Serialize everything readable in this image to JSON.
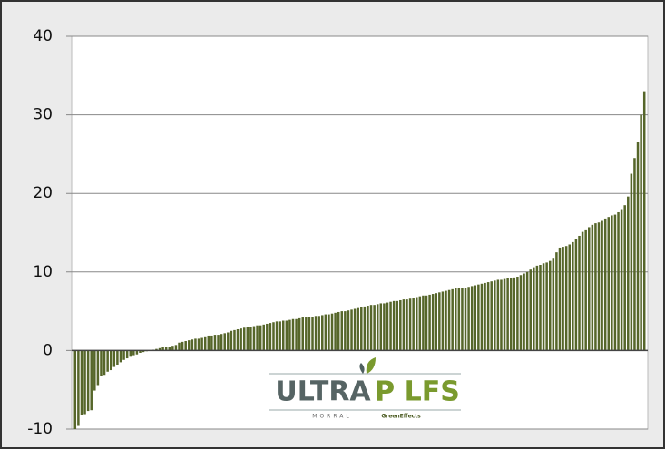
{
  "chart_data": {
    "type": "bar",
    "color": "#56662a",
    "values": [
      -10,
      -9.6,
      -8.2,
      -8.1,
      -7.7,
      -7.6,
      -5.1,
      -4.4,
      -3.2,
      -3.1,
      -2.7,
      -2.5,
      -2.1,
      -1.8,
      -1.5,
      -1.2,
      -1.0,
      -0.8,
      -0.6,
      -0.5,
      -0.3,
      -0.2,
      -0.1,
      0.0,
      0.1,
      0.2,
      0.3,
      0.4,
      0.5,
      0.5,
      0.6,
      0.7,
      1.0,
      1.1,
      1.2,
      1.3,
      1.4,
      1.5,
      1.5,
      1.6,
      1.8,
      1.9,
      1.9,
      2.0,
      2.0,
      2.1,
      2.2,
      2.3,
      2.5,
      2.6,
      2.7,
      2.8,
      2.9,
      3.0,
      3.0,
      3.1,
      3.2,
      3.2,
      3.3,
      3.4,
      3.5,
      3.6,
      3.7,
      3.7,
      3.8,
      3.8,
      3.9,
      4.0,
      4.0,
      4.1,
      4.2,
      4.2,
      4.3,
      4.3,
      4.4,
      4.4,
      4.5,
      4.6,
      4.6,
      4.7,
      4.8,
      4.9,
      5.0,
      5.0,
      5.1,
      5.2,
      5.3,
      5.4,
      5.5,
      5.6,
      5.7,
      5.8,
      5.8,
      5.9,
      6.0,
      6.0,
      6.1,
      6.2,
      6.3,
      6.3,
      6.4,
      6.5,
      6.5,
      6.6,
      6.7,
      6.8,
      6.9,
      7.0,
      7.0,
      7.1,
      7.2,
      7.3,
      7.4,
      7.5,
      7.6,
      7.7,
      7.8,
      7.9,
      7.9,
      8.0,
      8.0,
      8.1,
      8.2,
      8.3,
      8.4,
      8.5,
      8.6,
      8.7,
      8.8,
      8.9,
      9.0,
      9.0,
      9.1,
      9.2,
      9.2,
      9.3,
      9.4,
      9.6,
      9.8,
      10.0,
      10.3,
      10.6,
      10.8,
      10.9,
      11.1,
      11.2,
      11.4,
      11.8,
      12.5,
      13.1,
      13.2,
      13.3,
      13.5,
      13.8,
      14.2,
      14.6,
      15.1,
      15.3,
      15.7,
      16.0,
      16.2,
      16.3,
      16.5,
      16.8,
      17.0,
      17.2,
      17.3,
      17.6,
      18.0,
      18.5,
      19.6,
      22.5,
      24.5,
      26.5,
      30.0,
      33.0
    ],
    "ylim": [
      -10,
      40
    ],
    "yticks": [
      -10,
      0,
      10,
      20,
      30,
      40
    ],
    "grid": true,
    "logo": {
      "brand": "ULTRA",
      "product": "P LFS",
      "left": "MORRAL",
      "right": "GreenEffects"
    }
  }
}
